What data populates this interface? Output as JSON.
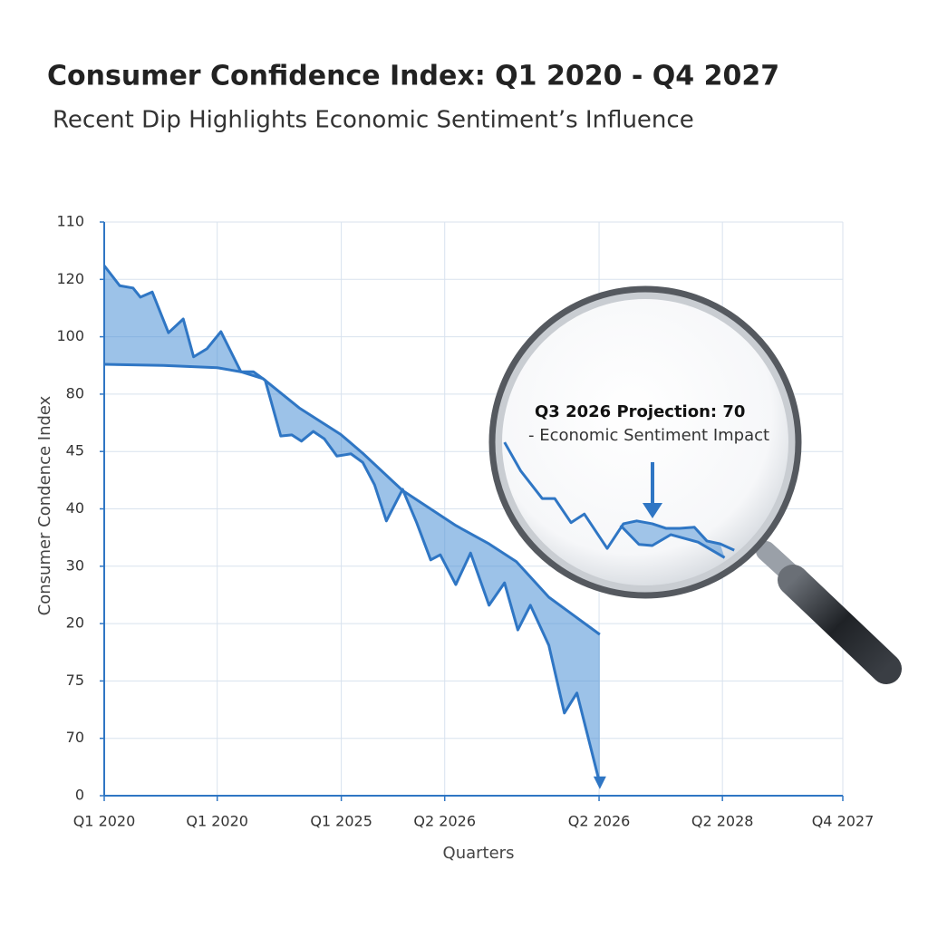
{
  "chart_data": {
    "type": "line",
    "title": "Consumer Confidence Index: Q1 2020 - Q4  2027",
    "subtitle": "Recent Dip Highlights Economic Sentiment’s Influence",
    "x_label": "Quarters",
    "y_label": "Consumer Condence Index",
    "xlim": [
      0,
      100
    ],
    "xticks": [
      {
        "value": 0,
        "label": "Q1 2020"
      },
      {
        "value": 15.3,
        "label": "Q1 2020"
      },
      {
        "value": 32.1,
        "label": "Q1 2025"
      },
      {
        "value": 46.1,
        "label": "Q2 2026"
      },
      {
        "value": 67.0,
        "label": "Q2 2026"
      },
      {
        "value": 83.7,
        "label": "Q2 2028"
      },
      {
        "value": 100,
        "label": "Q4 2027"
      }
    ],
    "ylim": [
      0,
      10
    ],
    "yticks": [
      {
        "value": 0,
        "label": "0"
      },
      {
        "value": 1,
        "label": "70"
      },
      {
        "value": 2,
        "label": "75"
      },
      {
        "value": 3,
        "label": "20"
      },
      {
        "value": 4,
        "label": "30"
      },
      {
        "value": 5,
        "label": "40"
      },
      {
        "value": 6,
        "label": "45"
      },
      {
        "value": 7,
        "label": "80"
      },
      {
        "value": 8,
        "label": "100"
      },
      {
        "value": 9,
        "label": "120"
      },
      {
        "value": 10,
        "label": "110"
      }
    ],
    "grid": true,
    "fill_color": "#4a8fd6",
    "series": [
      {
        "color": "#2f76c4",
        "x": [
          0,
          2.1,
          3.9,
          4.9,
          6.5,
          8.7,
          10.7,
          12.1,
          13.9,
          15.8,
          18.5,
          20.2,
          21.8,
          23.9,
          25.4,
          26.7,
          28.3,
          29.8,
          31.5,
          33.4,
          35.0,
          36.6,
          38.2,
          40.4,
          42.3,
          44.2,
          45.5,
          47.6,
          49.6,
          52.1,
          54.2,
          56.0,
          57.7,
          60.2,
          62.3,
          64.0,
          67.1
        ],
        "values": [
          9.24,
          8.89,
          8.85,
          8.69,
          8.78,
          8.07,
          8.31,
          7.65,
          7.79,
          8.09,
          7.39,
          7.39,
          7.24,
          6.27,
          6.29,
          6.18,
          6.35,
          6.22,
          5.92,
          5.96,
          5.81,
          5.42,
          4.79,
          5.34,
          4.76,
          4.11,
          4.2,
          3.68,
          4.23,
          3.32,
          3.71,
          2.89,
          3.32,
          2.62,
          1.44,
          1.79,
          0.21
        ]
      },
      {
        "color": "#2f76c4",
        "x": [
          0,
          8.0,
          15.3,
          18.5,
          21.5,
          26.4,
          32.0,
          35.0,
          40.4,
          47.6,
          52.1,
          55.8,
          60.2,
          67.1
        ],
        "values": [
          7.52,
          7.5,
          7.46,
          7.39,
          7.27,
          6.76,
          6.3,
          5.97,
          5.32,
          4.71,
          4.39,
          4.08,
          3.46,
          2.81
        ]
      }
    ],
    "inset_series": [
      {
        "color": "#2f76c4",
        "x": [
          54.2,
          56.4,
          59.3,
          61.0,
          63.2,
          65.0,
          68.1,
          70.3,
          72.1,
          74.2,
          76.1,
          77.9,
          79.9,
          81.6,
          83.4,
          85.3
        ],
        "values": [
          6.16,
          5.66,
          5.18,
          5.18,
          4.76,
          4.91,
          4.31,
          4.74,
          4.79,
          4.74,
          4.66,
          4.66,
          4.68,
          4.44,
          4.39,
          4.28
        ]
      },
      {
        "color": "#2f76c4",
        "x": [
          69.9,
          72.4,
          74.2,
          76.7,
          80.4,
          84.0
        ],
        "values": [
          4.71,
          4.38,
          4.36,
          4.55,
          4.42,
          4.15
        ]
      }
    ],
    "annotation": {
      "title": "Q3 2026 Projection: 70",
      "text": "- Economic Sentiment Impact"
    }
  }
}
